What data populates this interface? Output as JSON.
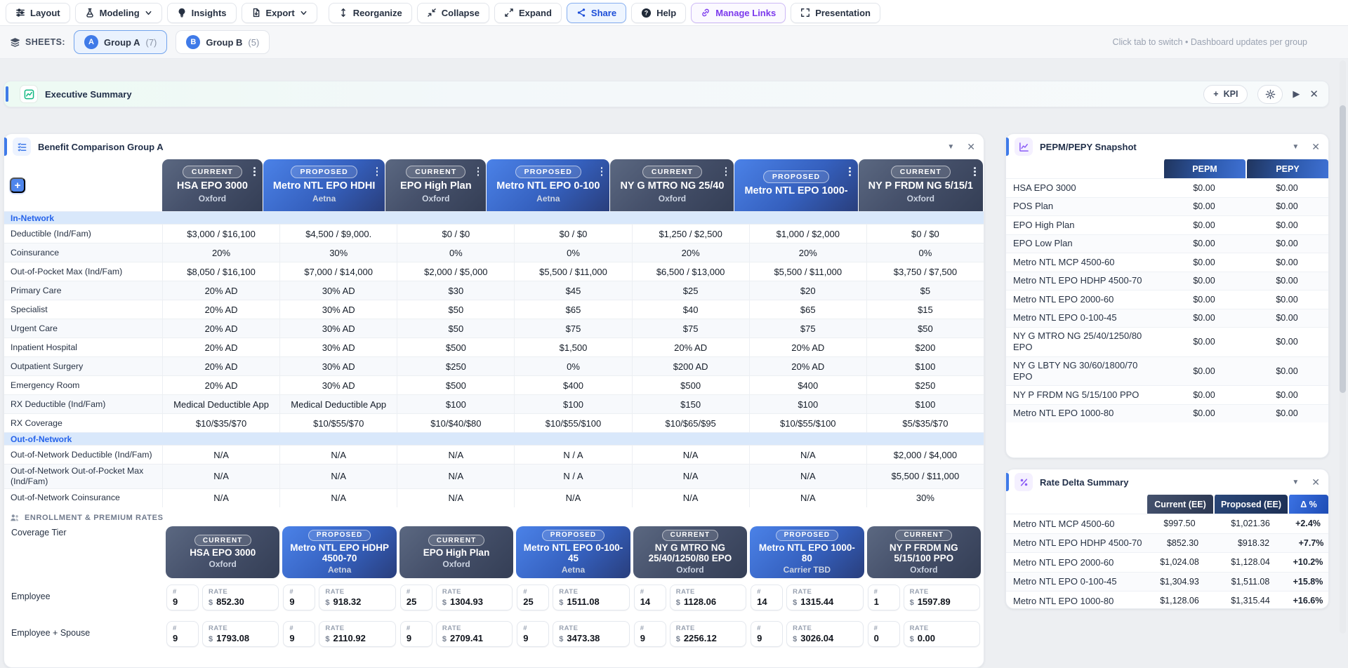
{
  "toolbar": {
    "buttons": [
      {
        "label": "Layout",
        "icon": "sliders",
        "variant": "default",
        "chevron": false
      },
      {
        "label": "Modeling",
        "icon": "flask",
        "variant": "default",
        "chevron": true
      },
      {
        "label": "Insights",
        "icon": "bulb",
        "variant": "default",
        "chevron": false
      },
      {
        "label": "Export",
        "icon": "export",
        "variant": "default",
        "chevron": true
      },
      {
        "label": "Reorganize",
        "icon": "updown",
        "variant": "default",
        "chevron": false,
        "gap": true
      },
      {
        "label": "Collapse",
        "icon": "collapse",
        "variant": "default",
        "chevron": false
      },
      {
        "label": "Expand",
        "icon": "expand",
        "variant": "default",
        "chevron": false
      },
      {
        "label": "Share",
        "icon": "share",
        "variant": "share",
        "chevron": false
      },
      {
        "label": "Help",
        "icon": "help",
        "variant": "default",
        "chevron": false
      },
      {
        "label": "Manage Links",
        "icon": "link",
        "variant": "purple",
        "chevron": false
      },
      {
        "label": "Presentation",
        "icon": "brackets",
        "variant": "default",
        "chevron": false
      }
    ]
  },
  "sheets_bar": {
    "label": "SHEETS:",
    "tabs": [
      {
        "badge": "A",
        "label": "Group A",
        "count": "(7)",
        "active": true
      },
      {
        "badge": "B",
        "label": "Group B",
        "count": "(5)",
        "active": false
      }
    ],
    "hint": "Click tab to switch • Dashboard updates per group"
  },
  "exec_bar": {
    "title": "Executive Summary",
    "kpi_label": "KPI",
    "plus": "+",
    "play": "▶",
    "close": "✕"
  },
  "benefit_panel": {
    "title": "Benefit Comparison Group A",
    "filter_glyph": "▼",
    "close_glyph": "✕",
    "plans": [
      {
        "status": "CURRENT",
        "name": "HSA EPO 3000",
        "carrier": "Oxford",
        "kind": "current"
      },
      {
        "status": "PROPOSED",
        "name": "Metro NTL EPO HDHI",
        "carrier": "Aetna",
        "kind": "proposed"
      },
      {
        "status": "CURRENT",
        "name": "EPO High Plan",
        "carrier": "Oxford",
        "kind": "current"
      },
      {
        "status": "PROPOSED",
        "name": "Metro NTL EPO 0-100",
        "carrier": "Aetna",
        "kind": "proposed"
      },
      {
        "status": "CURRENT",
        "name": "NY G MTRO NG 25/40",
        "carrier": "Oxford",
        "kind": "current"
      },
      {
        "status": "PROPOSED",
        "name": "Metro NTL EPO 1000-",
        "carrier": "",
        "kind": "proposed"
      },
      {
        "status": "CURRENT",
        "name": "NY P FRDM NG 5/15/1",
        "carrier": "Oxford",
        "kind": "current"
      }
    ],
    "rows": [
      {
        "type": "section",
        "label": "In-Network"
      },
      {
        "type": "row",
        "label": "Deductible (Ind/Fam)",
        "values": [
          "$3,000 / $16,100",
          "$4,500 / $9,000.",
          "$0 / $0",
          "$0 / $0",
          "$1,250 / $2,500",
          "$1,000 / $2,000",
          "$0 / $0"
        ]
      },
      {
        "type": "row",
        "label": "Coinsurance",
        "values": [
          "20%",
          "30%",
          "0%",
          "0%",
          "20%",
          "20%",
          "0%"
        ]
      },
      {
        "type": "row",
        "label": "Out-of-Pocket Max (Ind/Fam)",
        "values": [
          "$8,050 / $16,100",
          "$7,000 / $14,000",
          "$2,000 / $5,000",
          "$5,500 / $11,000",
          "$6,500 / $13,000",
          "$5,500 / $11,000",
          "$3,750 / $7,500"
        ]
      },
      {
        "type": "row",
        "label": "Primary Care",
        "values": [
          "20% AD",
          "30% AD",
          "$30",
          "$45",
          "$25",
          "$20",
          "$5"
        ]
      },
      {
        "type": "row",
        "label": "Specialist",
        "values": [
          "20% AD",
          "30% AD",
          "$50",
          "$65",
          "$40",
          "$65",
          "$15"
        ]
      },
      {
        "type": "row",
        "label": "Urgent Care",
        "values": [
          "20% AD",
          "30% AD",
          "$50",
          "$75",
          "$75",
          "$75",
          "$50"
        ]
      },
      {
        "type": "row",
        "label": "Inpatient Hospital",
        "values": [
          "20% AD",
          "30% AD",
          "$500",
          "$1,500",
          "20% AD",
          "20% AD",
          "$200"
        ]
      },
      {
        "type": "row",
        "label": "Outpatient Surgery",
        "values": [
          "20% AD",
          "30% AD",
          "$250",
          "0%",
          "$200 AD",
          "20% AD",
          "$100"
        ]
      },
      {
        "type": "row",
        "label": "Emergency Room",
        "values": [
          "20% AD",
          "30% AD",
          "$500",
          "$400",
          "$500",
          "$400",
          "$250"
        ]
      },
      {
        "type": "row",
        "label": "RX Deductible (Ind/Fam)",
        "values": [
          "Medical Deductible App",
          "Medical Deductible App",
          "$100",
          "$100",
          "$150",
          "$100",
          "$100"
        ]
      },
      {
        "type": "row",
        "label": "RX Coverage",
        "values": [
          "$10/$35/$70",
          "$10/$55/$70",
          "$10/$40/$80",
          "$10/$55/$100",
          "$10/$65/$95",
          "$10/$55/$100",
          "$5/$35/$70"
        ]
      },
      {
        "type": "section",
        "label": "Out-of-Network"
      },
      {
        "type": "row",
        "label": "Out-of-Network Deductible (Ind/Fam)",
        "values": [
          "N/A",
          "N/A",
          "N/A",
          "N / A",
          "N/A",
          "N/A",
          "$2,000 / $4,000"
        ]
      },
      {
        "type": "row",
        "label": "Out-of-Network Out-of-Pocket Max (Ind/Fam)",
        "values": [
          "N/A",
          "N/A",
          "N/A",
          "N / A",
          "N/A",
          "N/A",
          "$5,500 / $11,000"
        ]
      },
      {
        "type": "row",
        "label": "Out-of-Network Coinsurance",
        "values": [
          "N/A",
          "N/A",
          "N/A",
          "N/A",
          "N/A",
          "N/A",
          "30%"
        ]
      }
    ]
  },
  "enrollment": {
    "section_title": "ENROLLMENT & PREMIUM RATES",
    "coverage_tier_label": "Coverage Tier",
    "count_label": "#",
    "rate_label": "RATE",
    "dollar": "$",
    "plans": [
      {
        "status": "CURRENT",
        "name": "HSA EPO 3000",
        "carrier": "Oxford",
        "kind": "current"
      },
      {
        "status": "PROPOSED",
        "name": "Metro NTL EPO HDHP 4500-70",
        "carrier": "Aetna",
        "kind": "proposed"
      },
      {
        "status": "CURRENT",
        "name": "EPO High Plan",
        "carrier": "Oxford",
        "kind": "current"
      },
      {
        "status": "PROPOSED",
        "name": "Metro NTL EPO 0-100-45",
        "carrier": "Aetna",
        "kind": "proposed"
      },
      {
        "status": "CURRENT",
        "name": "NY G MTRO NG 25/40/1250/80 EPO",
        "carrier": "Oxford",
        "kind": "current"
      },
      {
        "status": "PROPOSED",
        "name": "Metro NTL EPO 1000-80",
        "carrier": "Carrier TBD",
        "kind": "proposed"
      },
      {
        "status": "CURRENT",
        "name": "NY P FRDM NG 5/15/100 PPO",
        "carrier": "Oxford",
        "kind": "current"
      }
    ],
    "tiers": [
      {
        "label": "Employee",
        "cells": [
          {
            "count": "9",
            "rate": "852.30"
          },
          {
            "count": "9",
            "rate": "918.32"
          },
          {
            "count": "25",
            "rate": "1304.93"
          },
          {
            "count": "25",
            "rate": "1511.08"
          },
          {
            "count": "14",
            "rate": "1128.06"
          },
          {
            "count": "14",
            "rate": "1315.44"
          },
          {
            "count": "1",
            "rate": "1597.89"
          }
        ]
      },
      {
        "label": "Employee + Spouse",
        "cells": [
          {
            "count": "9",
            "rate": "1793.08"
          },
          {
            "count": "9",
            "rate": "2110.92"
          },
          {
            "count": "9",
            "rate": "2709.41"
          },
          {
            "count": "9",
            "rate": "3473.38"
          },
          {
            "count": "9",
            "rate": "2256.12"
          },
          {
            "count": "9",
            "rate": "3026.04"
          },
          {
            "count": "0",
            "rate": "0.00"
          }
        ]
      }
    ]
  },
  "pepm_panel": {
    "title": "PEPM/PEPY Snapshot",
    "filter_glyph": "▼",
    "close_glyph": "✕",
    "columns": [
      "PEPM",
      "PEPY"
    ],
    "rows": [
      {
        "label": "HSA EPO 3000",
        "pepm": "$0.00",
        "pepy": "$0.00"
      },
      {
        "label": "POS Plan",
        "pepm": "$0.00",
        "pepy": "$0.00"
      },
      {
        "label": "EPO High Plan",
        "pepm": "$0.00",
        "pepy": "$0.00"
      },
      {
        "label": "EPO Low Plan",
        "pepm": "$0.00",
        "pepy": "$0.00"
      },
      {
        "label": "Metro NTL MCP 4500-60",
        "pepm": "$0.00",
        "pepy": "$0.00"
      },
      {
        "label": "Metro NTL EPO HDHP 4500-70",
        "pepm": "$0.00",
        "pepy": "$0.00"
      },
      {
        "label": "Metro NTL EPO 2000-60",
        "pepm": "$0.00",
        "pepy": "$0.00"
      },
      {
        "label": "Metro NTL EPO 0-100-45",
        "pepm": "$0.00",
        "pepy": "$0.00"
      },
      {
        "label": "NY G MTRO NG 25/40/1250/80 EPO",
        "pepm": "$0.00",
        "pepy": "$0.00"
      },
      {
        "label": "NY G LBTY NG 30/60/1800/70 EPO",
        "pepm": "$0.00",
        "pepy": "$0.00"
      },
      {
        "label": "NY P FRDM NG 5/15/100 PPO",
        "pepm": "$0.00",
        "pepy": "$0.00"
      },
      {
        "label": "Metro NTL EPO 1000-80",
        "pepm": "$0.00",
        "pepy": "$0.00"
      }
    ]
  },
  "delta_panel": {
    "title": "Rate Delta Summary",
    "filter_glyph": "▼",
    "close_glyph": "✕",
    "columns": [
      "Current (EE)",
      "Proposed (EE)",
      "Δ %"
    ],
    "rows": [
      {
        "label": "Metro NTL MCP 4500-60",
        "current": "$997.50",
        "proposed": "$1,021.36",
        "delta": "+2.4%"
      },
      {
        "label": "Metro NTL EPO HDHP 4500-70",
        "current": "$852.30",
        "proposed": "$918.32",
        "delta": "+7.7%"
      },
      {
        "label": "Metro NTL EPO 2000-60",
        "current": "$1,024.08",
        "proposed": "$1,128.04",
        "delta": "+10.2%"
      },
      {
        "label": "Metro NTL EPO 0-100-45",
        "current": "$1,304.93",
        "proposed": "$1,511.08",
        "delta": "+15.8%"
      },
      {
        "label": "Metro NTL EPO 1000-80",
        "current": "$1,128.06",
        "proposed": "$1,315.44",
        "delta": "+16.6%"
      }
    ]
  },
  "colors": {
    "accent_blue": "#3f7ae8",
    "current_header": "#46516b",
    "proposed_header": "#3560be",
    "section_row_bg": "#d9e8fb",
    "section_row_text": "#2563eb",
    "table_header_blue": "#2f5cb0",
    "purple_accent": "#7c3aed",
    "green_icon": "#10b981"
  }
}
